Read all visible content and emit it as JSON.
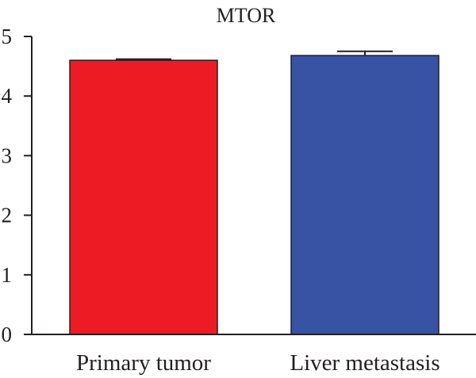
{
  "chart_data": {
    "type": "bar",
    "title": "MTOR",
    "xlabel": "",
    "ylabel": "",
    "categories": [
      "Primary tumor",
      "Liver metastasis"
    ],
    "values": [
      4.6,
      4.68
    ],
    "error_upper": [
      4.62,
      4.75
    ],
    "ylim": [
      0,
      5
    ],
    "yticks": [
      0,
      1,
      2,
      3,
      4,
      5
    ],
    "ytick_labels": [
      "0",
      "1",
      "2",
      "3",
      "4",
      "5"
    ],
    "grid": false,
    "bar_colors": [
      "#ed1c24",
      "#3853a4"
    ],
    "axis_color": "#231f20"
  }
}
